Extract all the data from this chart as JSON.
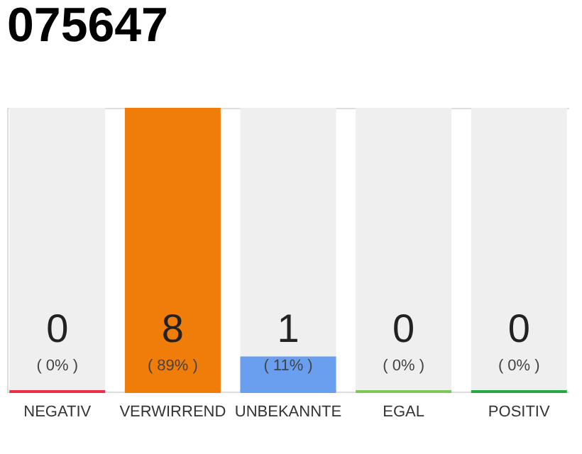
{
  "chart_data": {
    "type": "bar",
    "title": "075647",
    "categories": [
      "NEGATIV",
      "VERWIRREND",
      "UNBEKANNTE",
      "EGAL",
      "POSITIV"
    ],
    "values": [
      0,
      89,
      11,
      0,
      0
    ],
    "colors": [
      "#e8304a",
      "#f07c0a",
      "#6a9ff0",
      "#7ec85a",
      "#28a745"
    ],
    "tick_labels": "x",
    "grid": false,
    "value_labels": [
      "( 0% )",
      "( 89% )",
      "( 11% )",
      "( 0% )",
      "( 0% )"
    ],
    "annotations": [
      "0",
      "8",
      "1",
      "0",
      "0"
    ]
  }
}
